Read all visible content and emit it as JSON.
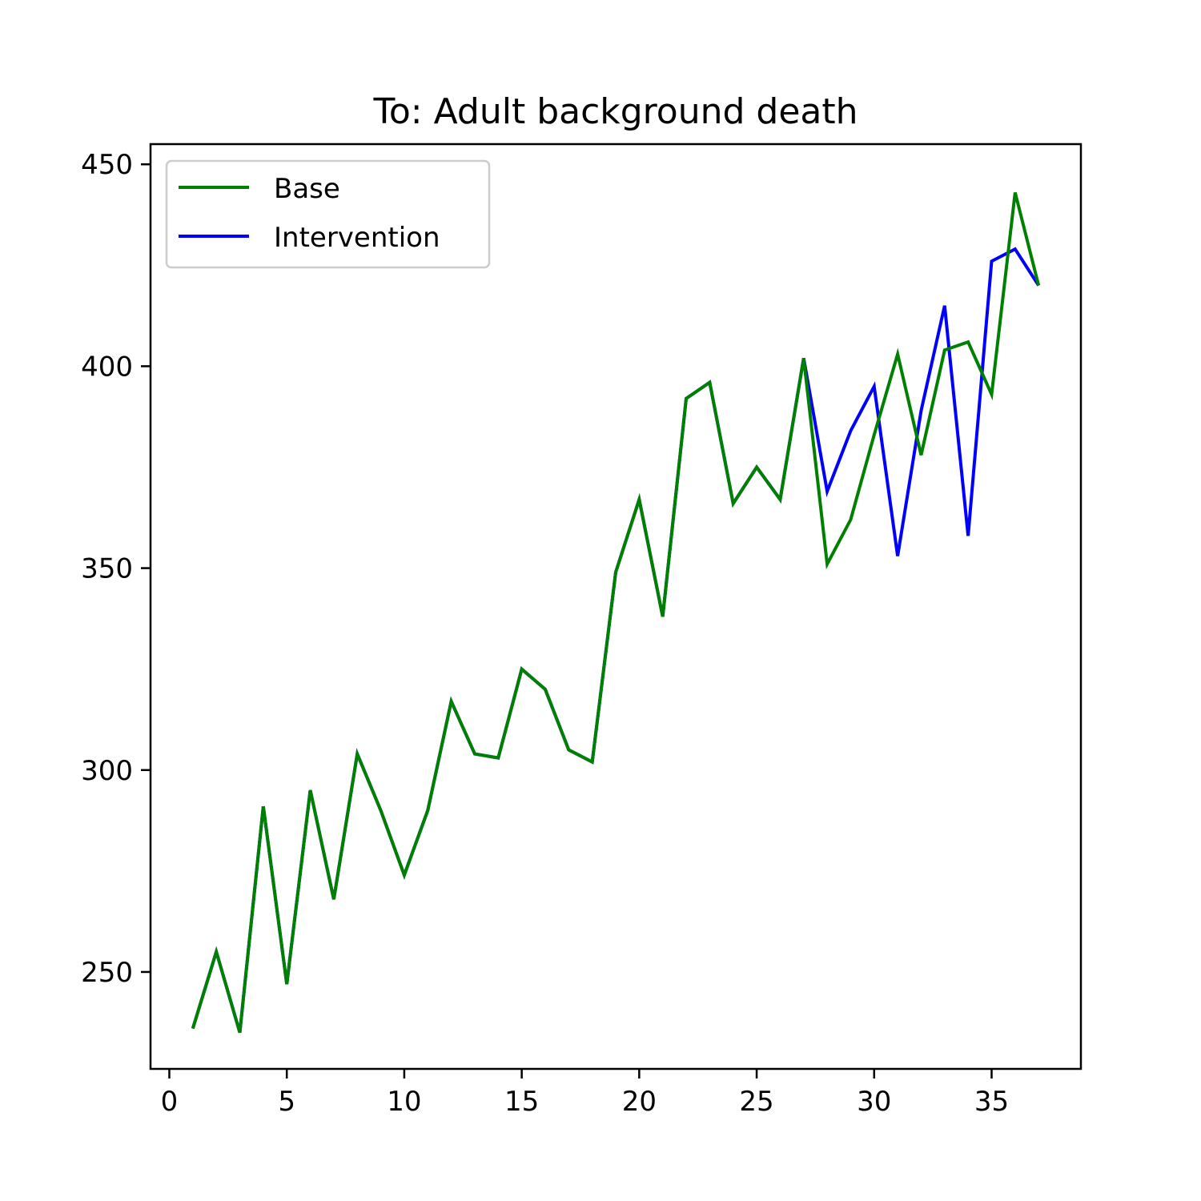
{
  "chart_data": {
    "type": "line",
    "title": "To: Adult background death",
    "xlabel": "",
    "ylabel": "",
    "xlim": [
      -0.8,
      38.8
    ],
    "ylim": [
      226,
      455
    ],
    "x_ticks": [
      0,
      5,
      10,
      15,
      20,
      25,
      30,
      35
    ],
    "y_ticks": [
      250,
      300,
      350,
      400,
      450
    ],
    "grid": false,
    "legend_position": "top-left",
    "x": [
      1,
      2,
      3,
      4,
      5,
      6,
      7,
      8,
      9,
      10,
      11,
      12,
      13,
      14,
      15,
      16,
      17,
      18,
      19,
      20,
      21,
      22,
      23,
      24,
      25,
      26,
      27,
      28,
      29,
      30,
      31,
      32,
      33,
      34,
      35,
      36,
      37
    ],
    "series": [
      {
        "name": "Intervention",
        "color": "#0000ff",
        "values": [
          236,
          255,
          235,
          291,
          247,
          295,
          268,
          304,
          290,
          274,
          290,
          317,
          304,
          303,
          325,
          320,
          305,
          302,
          349,
          367,
          338,
          392,
          396,
          366,
          375,
          367,
          402,
          369,
          384,
          395,
          353,
          389,
          415,
          358,
          426,
          429,
          420
        ]
      },
      {
        "name": "Base",
        "color": "#008000",
        "values": [
          236,
          255,
          235,
          291,
          247,
          295,
          268,
          304,
          290,
          274,
          290,
          317,
          304,
          303,
          325,
          320,
          305,
          302,
          349,
          367,
          338,
          392,
          396,
          366,
          375,
          367,
          402,
          351,
          362,
          383,
          403,
          378,
          404,
          406,
          393,
          443,
          420
        ]
      }
    ],
    "legend": [
      "Base",
      "Intervention"
    ]
  }
}
